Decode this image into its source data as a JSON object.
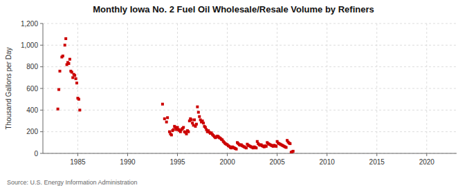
{
  "chart_data": {
    "type": "scatter",
    "title": "Monthly Iowa No. 2 Fuel Oil Wholesale/Resale Volume by Refiners",
    "ylabel": "Thousand Gallons per Day",
    "source": "Source: U.S. Energy Information Administration",
    "color": "#cc0000",
    "marker": "square",
    "grid": true,
    "xlim": [
      1981.5,
      2023
    ],
    "ylim": [
      0,
      1200
    ],
    "xticks": [
      1985,
      1990,
      1995,
      2000,
      2005,
      2010,
      2015,
      2020
    ],
    "yticks": [
      0,
      200,
      400,
      600,
      800,
      {
        "value": 1000,
        "label": "1,000"
      },
      {
        "value": 1200,
        "label": "1,200"
      }
    ],
    "x": [
      1983.0,
      1983.1,
      1983.2,
      1983.4,
      1983.5,
      1983.7,
      1983.8,
      1983.9,
      1984.0,
      1984.1,
      1984.2,
      1984.3,
      1984.4,
      1984.5,
      1984.6,
      1984.7,
      1984.8,
      1984.9,
      1985.0,
      1985.1,
      1985.2,
      1993.5,
      1993.7,
      1993.9,
      1994.0,
      1994.2,
      1994.3,
      1994.4,
      1994.5,
      1994.6,
      1994.7,
      1994.8,
      1994.9,
      1995.0,
      1995.1,
      1995.2,
      1995.3,
      1995.4,
      1995.5,
      1995.6,
      1995.7,
      1995.8,
      1995.9,
      1996.0,
      1996.1,
      1996.2,
      1996.3,
      1996.4,
      1996.5,
      1996.6,
      1996.7,
      1996.8,
      1996.9,
      1997.0,
      1997.1,
      1997.2,
      1997.3,
      1997.4,
      1997.5,
      1997.6,
      1997.7,
      1997.8,
      1997.9,
      1998.0,
      1998.1,
      1998.2,
      1998.3,
      1998.4,
      1998.5,
      1998.6,
      1998.7,
      1998.8,
      1998.9,
      1999.0,
      1999.1,
      1999.2,
      1999.3,
      1999.4,
      1999.5,
      1999.6,
      1999.7,
      1999.8,
      1999.9,
      2000.0,
      2000.1,
      2000.2,
      2000.3,
      2000.4,
      2000.5,
      2000.6,
      2000.7,
      2000.8,
      2000.9,
      2001.0,
      2001.1,
      2001.2,
      2001.3,
      2001.4,
      2001.5,
      2001.6,
      2001.7,
      2001.8,
      2001.9,
      2002.0,
      2002.1,
      2002.2,
      2002.3,
      2002.4,
      2002.5,
      2002.6,
      2002.7,
      2002.8,
      2002.9,
      2003.0,
      2003.1,
      2003.2,
      2003.3,
      2003.4,
      2003.5,
      2003.6,
      2003.7,
      2003.8,
      2003.9,
      2004.0,
      2004.1,
      2004.2,
      2004.3,
      2004.4,
      2004.5,
      2004.6,
      2004.7,
      2004.8,
      2004.9,
      2005.0,
      2005.1,
      2005.2,
      2005.3,
      2005.4,
      2005.5,
      2005.6,
      2005.7,
      2005.8,
      2005.9,
      2006.0,
      2006.1,
      2006.2,
      2006.3,
      2006.4,
      2006.5,
      2006.6
    ],
    "values": [
      410,
      590,
      760,
      890,
      900,
      1000,
      1060,
      820,
      840,
      830,
      870,
      760,
      750,
      700,
      730,
      720,
      690,
      650,
      510,
      500,
      400,
      455,
      320,
      290,
      330,
      200,
      180,
      170,
      210,
      220,
      250,
      240,
      220,
      240,
      220,
      210,
      200,
      220,
      230,
      240,
      200,
      195,
      180,
      210,
      200,
      300,
      320,
      310,
      280,
      260,
      310,
      250,
      270,
      430,
      380,
      340,
      310,
      290,
      300,
      280,
      250,
      240,
      220,
      200,
      210,
      195,
      185,
      190,
      175,
      165,
      155,
      145,
      150,
      160,
      155,
      145,
      140,
      130,
      125,
      110,
      100,
      90,
      85,
      80,
      70,
      65,
      55,
      50,
      60,
      55,
      50,
      45,
      40,
      100,
      90,
      80,
      75,
      80,
      70,
      65,
      60,
      55,
      50,
      85,
      75,
      70,
      65,
      60,
      55,
      50,
      60,
      55,
      50,
      110,
      90,
      80,
      75,
      80,
      70,
      65,
      60,
      70,
      65,
      100,
      90,
      85,
      80,
      75,
      70,
      65,
      75,
      70,
      65,
      110,
      95,
      90,
      85,
      80,
      75,
      70,
      65,
      60,
      55,
      120,
      105,
      95,
      90,
      10,
      15,
      20
    ]
  }
}
